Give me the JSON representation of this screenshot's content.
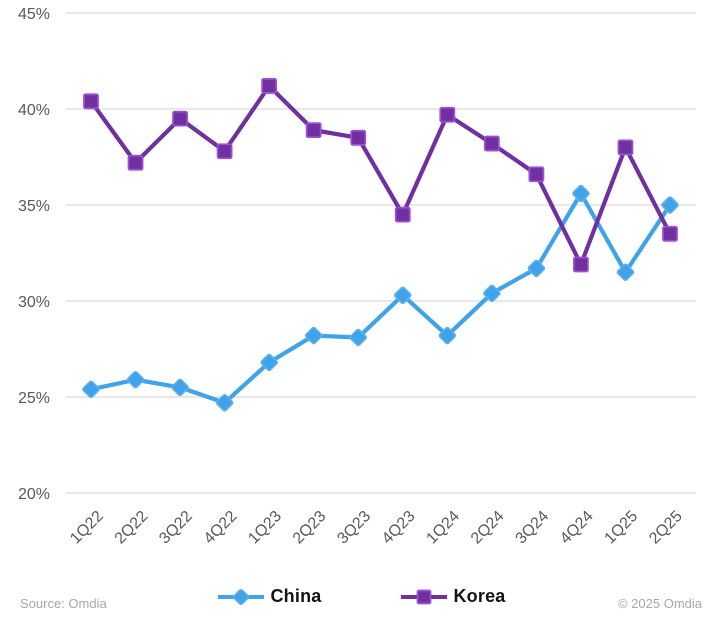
{
  "chart_data": {
    "type": "line",
    "categories": [
      "1Q22",
      "2Q22",
      "3Q22",
      "4Q22",
      "1Q23",
      "2Q23",
      "3Q23",
      "4Q23",
      "1Q24",
      "2Q24",
      "3Q24",
      "4Q24",
      "1Q25",
      "2Q25"
    ],
    "series": [
      {
        "name": "China",
        "marker": "diamond",
        "line_color": "#3FA3E9",
        "fill_color": "#3FA3E9",
        "border_color": "#5FB2EE",
        "values": [
          25.4,
          25.9,
          25.5,
          24.7,
          26.8,
          28.2,
          28.1,
          30.3,
          28.2,
          30.4,
          31.7,
          35.6,
          31.5,
          35.0
        ]
      },
      {
        "name": "Korea",
        "marker": "square",
        "line_color": "#7030A0",
        "fill_color": "#7030A0",
        "border_color": "#9C4FD2",
        "values": [
          40.4,
          37.2,
          39.5,
          37.8,
          41.2,
          38.9,
          38.5,
          34.5,
          39.7,
          38.2,
          36.6,
          31.9,
          38.0,
          33.5
        ]
      }
    ],
    "ylim": [
      20,
      45
    ],
    "yticks": {
      "values": [
        45,
        40,
        35,
        30,
        25,
        20
      ],
      "labels": [
        "45%",
        "40%",
        "35%",
        "30%",
        "25%",
        "20%"
      ]
    },
    "grid": true,
    "legend_position": "bottom",
    "title": "",
    "xlabel": "",
    "ylabel": ""
  },
  "footer": {
    "source": "Source: Omdia",
    "copyright": "© 2025 Omdia"
  }
}
